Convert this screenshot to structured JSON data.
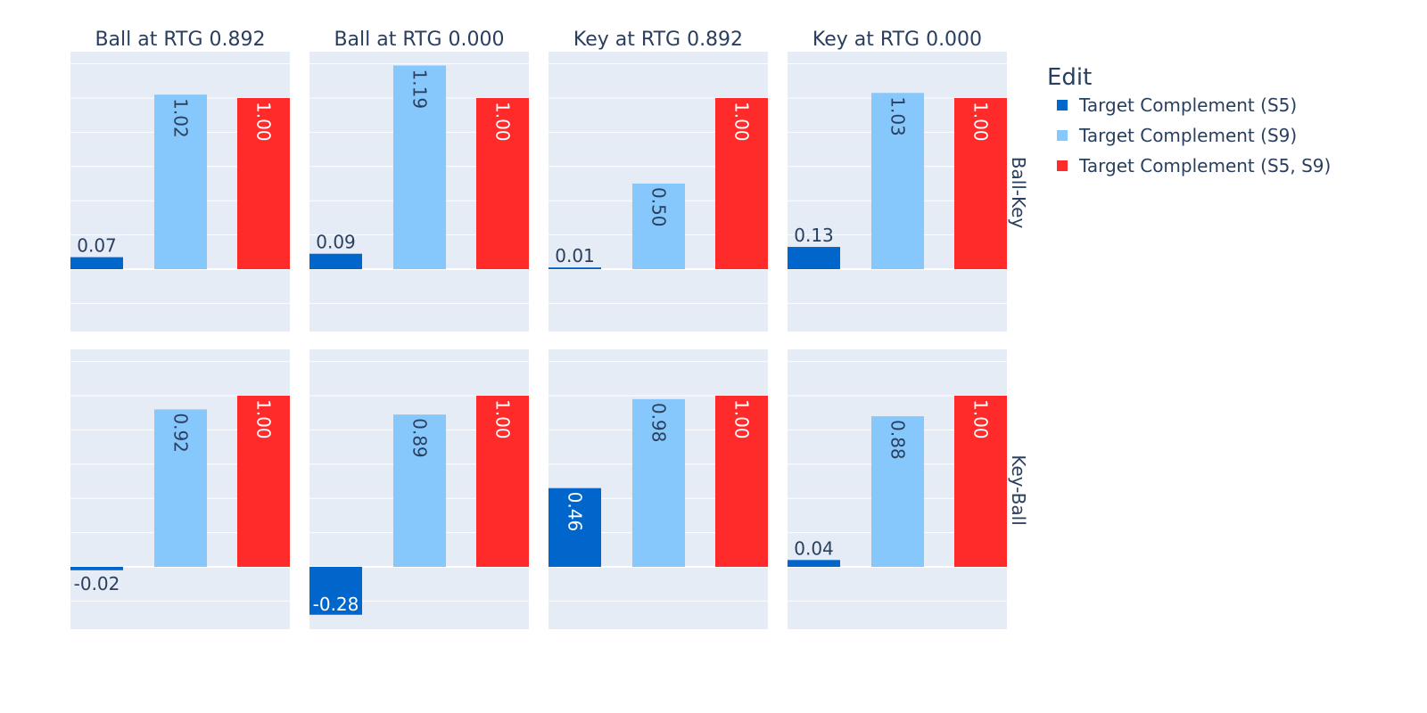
{
  "chart_data": {
    "type": "bar",
    "columns": [
      "Ball at RTG 0.892",
      "Ball at RTG 0.000",
      "Key at RTG 0.892",
      "Key at RTG 0.000"
    ],
    "rows": [
      "Ball-Key",
      "Key-Ball"
    ],
    "legend": {
      "title": "Edit",
      "placement": "top-right",
      "items": [
        {
          "name": "Target Complement (S5)",
          "color": "#0066cc"
        },
        {
          "name": "Target Complement (S9)",
          "color": "#87c8fc"
        },
        {
          "name": "Target Complement (S5, S9)",
          "color": "#ff2a2a"
        }
      ]
    },
    "ylim": [
      -0.35,
      1.3
    ],
    "grid": true,
    "panels": [
      {
        "row": "Ball-Key",
        "column": "Ball at RTG 0.892",
        "values": [
          0.07,
          1.02,
          1.0
        ],
        "labels": [
          "0.07",
          "1.02",
          "1.00"
        ]
      },
      {
        "row": "Ball-Key",
        "column": "Ball at RTG 0.000",
        "values": [
          0.09,
          1.19,
          1.0
        ],
        "labels": [
          "0.09",
          "1.19",
          "1.00"
        ]
      },
      {
        "row": "Ball-Key",
        "column": "Key at RTG 0.892",
        "values": [
          0.01,
          0.5,
          1.0
        ],
        "labels": [
          "0.01",
          "0.50",
          "1.00"
        ]
      },
      {
        "row": "Ball-Key",
        "column": "Key at RTG 0.000",
        "values": [
          0.13,
          1.03,
          1.0
        ],
        "labels": [
          "0.13",
          "1.03",
          "1.00"
        ]
      },
      {
        "row": "Key-Ball",
        "column": "Ball at RTG 0.892",
        "values": [
          -0.02,
          0.92,
          1.0
        ],
        "labels": [
          "-0.02",
          "0.92",
          "1.00"
        ]
      },
      {
        "row": "Key-Ball",
        "column": "Ball at RTG 0.000",
        "values": [
          -0.28,
          0.89,
          1.0
        ],
        "labels": [
          "-0.28",
          "0.89",
          "1.00"
        ]
      },
      {
        "row": "Key-Ball",
        "column": "Key at RTG 0.892",
        "values": [
          0.46,
          0.98,
          1.0
        ],
        "labels": [
          "0.46",
          "0.98",
          "1.00"
        ]
      },
      {
        "row": "Key-Ball",
        "column": "Key at RTG 0.000",
        "values": [
          0.04,
          0.88,
          1.0
        ],
        "labels": [
          "0.04",
          "0.88",
          "1.00"
        ]
      }
    ]
  }
}
